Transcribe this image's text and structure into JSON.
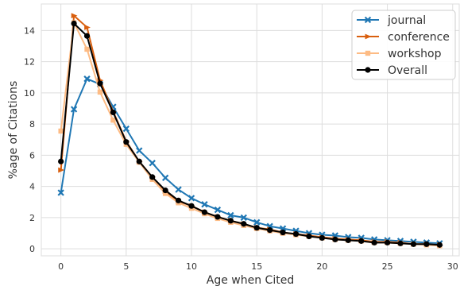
{
  "chart_data": {
    "type": "line",
    "xlabel": "Age when Cited",
    "ylabel": "%age of Citations",
    "xlim": [
      -1.5,
      30.5
    ],
    "ylim": [
      -0.45,
      15.7
    ],
    "xticks": [
      0,
      5,
      10,
      15,
      20,
      25,
      30
    ],
    "yticks": [
      0,
      2,
      4,
      6,
      8,
      10,
      12,
      14
    ],
    "grid": true,
    "legend_position": "top-right",
    "series": [
      {
        "name": "journal",
        "color": "#1f77b4",
        "marker": "x",
        "x": [
          0,
          1,
          2,
          3,
          4,
          5,
          6,
          7,
          8,
          9,
          10,
          11,
          12,
          13,
          14,
          15,
          16,
          17,
          18,
          19,
          20,
          21,
          22,
          23,
          24,
          25,
          26,
          27,
          28,
          29
        ],
        "y": [
          3.6,
          8.95,
          10.9,
          10.55,
          9.1,
          7.7,
          6.3,
          5.5,
          4.55,
          3.8,
          3.25,
          2.85,
          2.5,
          2.15,
          2.0,
          1.7,
          1.45,
          1.3,
          1.15,
          1.0,
          0.9,
          0.85,
          0.75,
          0.7,
          0.6,
          0.55,
          0.5,
          0.45,
          0.4,
          0.35
        ]
      },
      {
        "name": "conference",
        "color": "#d95f0e",
        "marker": "triangle-right",
        "x": [
          0,
          1,
          2,
          3,
          4,
          5,
          6,
          7,
          8,
          9,
          10,
          11,
          12,
          13,
          14,
          15,
          16,
          17,
          18,
          19,
          20,
          21,
          22,
          23,
          24,
          25,
          26,
          27,
          28,
          29
        ],
        "y": [
          5.05,
          14.95,
          14.2,
          10.8,
          8.8,
          6.9,
          5.6,
          4.6,
          3.7,
          3.05,
          2.75,
          2.35,
          2.05,
          1.8,
          1.6,
          1.35,
          1.25,
          1.05,
          0.95,
          0.85,
          0.75,
          0.65,
          0.6,
          0.55,
          0.45,
          0.45,
          0.4,
          0.3,
          0.3,
          0.25
        ]
      },
      {
        "name": "workshop",
        "color": "#fdbb84",
        "marker": "square",
        "x": [
          0,
          1,
          2,
          3,
          4,
          5,
          6,
          7,
          8,
          9,
          10,
          11,
          12,
          13,
          14,
          15,
          16,
          17,
          18,
          19,
          20,
          21,
          22,
          23,
          24,
          25,
          26,
          27,
          28,
          29
        ],
        "y": [
          7.55,
          14.5,
          12.8,
          10.05,
          8.25,
          6.7,
          5.55,
          4.45,
          3.55,
          2.95,
          2.6,
          2.25,
          1.95,
          1.7,
          1.5,
          1.3,
          1.15,
          1.0,
          0.9,
          0.8,
          0.7,
          0.6,
          0.55,
          0.5,
          0.4,
          0.4,
          0.35,
          0.3,
          0.25,
          0.2
        ]
      },
      {
        "name": "Overall",
        "color": "#000000",
        "marker": "circle",
        "x": [
          0,
          1,
          2,
          3,
          4,
          5,
          6,
          7,
          8,
          9,
          10,
          11,
          12,
          13,
          14,
          15,
          16,
          17,
          18,
          19,
          20,
          21,
          22,
          23,
          24,
          25,
          26,
          27,
          28,
          29
        ],
        "y": [
          5.6,
          14.45,
          13.65,
          10.6,
          8.75,
          6.85,
          5.6,
          4.6,
          3.75,
          3.1,
          2.75,
          2.35,
          2.05,
          1.8,
          1.6,
          1.35,
          1.2,
          1.05,
          0.95,
          0.8,
          0.7,
          0.6,
          0.55,
          0.5,
          0.4,
          0.4,
          0.35,
          0.3,
          0.3,
          0.25
        ]
      }
    ]
  }
}
